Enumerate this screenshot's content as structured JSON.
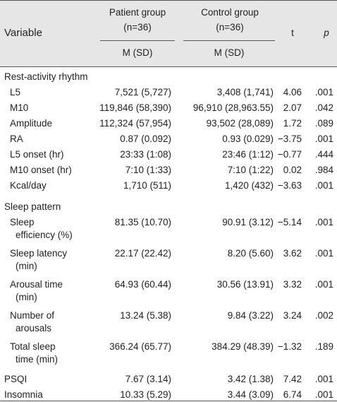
{
  "header": {
    "variable": "Variable",
    "patient_group": "Patient group",
    "patient_n": "(n=36)",
    "control_group": "Control group",
    "control_n": "(n=36)",
    "t": "t",
    "p": "p",
    "patient_stat": "M (SD)",
    "control_stat": "M (SD)"
  },
  "sections": [
    {
      "title": "Rest-activity rhythm",
      "rows": [
        {
          "label": [
            "L5"
          ],
          "patient": "7,521 (5,727)",
          "control": "3,408 (1,741)",
          "t": "4.06",
          "p": ".001"
        },
        {
          "label": [
            "M10"
          ],
          "patient": "119,846 (58,390)",
          "control": "96,910 (28,963.55)",
          "t": "2.07",
          "p": ".042"
        },
        {
          "label": [
            "Amplitude"
          ],
          "patient": "112,324 (57,954)",
          "control": "93,502 (28,089)",
          "t": "1.72",
          "p": ".089"
        },
        {
          "label": [
            "RA"
          ],
          "patient": "0.87 (0.092)",
          "control": "0.93 (0.029)",
          "t": "−3.75",
          "p": ".001"
        },
        {
          "label": [
            "L5 onset (hr)"
          ],
          "patient": "23:33 (1:08)",
          "control": "23:46 (1:12)",
          "t": "−0.77",
          "p": ".444"
        },
        {
          "label": [
            "M10 onset (hr)"
          ],
          "patient": "7:10 (1:33)",
          "control": "7:10 (1:22)",
          "t": "0.02",
          "p": ".984"
        },
        {
          "label": [
            "Kcal/day"
          ],
          "patient": "1,710 (511)",
          "control": "1,420 (432)",
          "t": "−3.63",
          "p": ".001"
        }
      ]
    },
    {
      "title": "Sleep pattern",
      "rows": [
        {
          "label": [
            "Sleep",
            "efficiency (%)"
          ],
          "patient": "81.35 (10.70)",
          "control": "90.91 (3.12)",
          "t": "−5.14",
          "p": ".001"
        },
        {
          "label": [
            "Sleep latency",
            "(min)"
          ],
          "patient": "22.17 (22.42)",
          "control": "8.20 (5.60)",
          "t": "3.62",
          "p": ".001"
        },
        {
          "label": [
            "Arousal time",
            "(min)"
          ],
          "patient": "64.93 (60.44)",
          "control": "30.56 (13.91)",
          "t": "3.32",
          "p": ".001"
        },
        {
          "label": [
            "Number of",
            "arousals"
          ],
          "patient": "13.24 (5.38)",
          "control": "9.84 (3.22)",
          "t": "3.24",
          "p": ".002"
        },
        {
          "label": [
            "Total sleep",
            "time (min)"
          ],
          "patient": "366.24 (65.77)",
          "control": "384.29 (48.39)",
          "t": "−1.32",
          "p": ".189"
        }
      ]
    }
  ],
  "footer_rows": [
    {
      "label": "PSQI",
      "patient": "7.67 (3.14)",
      "control": "3.42 (1.38)",
      "t": "7.42",
      "p": ".001"
    },
    {
      "label": "Insomnia",
      "patient": "10.33 (5.29)",
      "control": "3.44 (3.09)",
      "t": "6.74",
      "p": ".001"
    }
  ]
}
